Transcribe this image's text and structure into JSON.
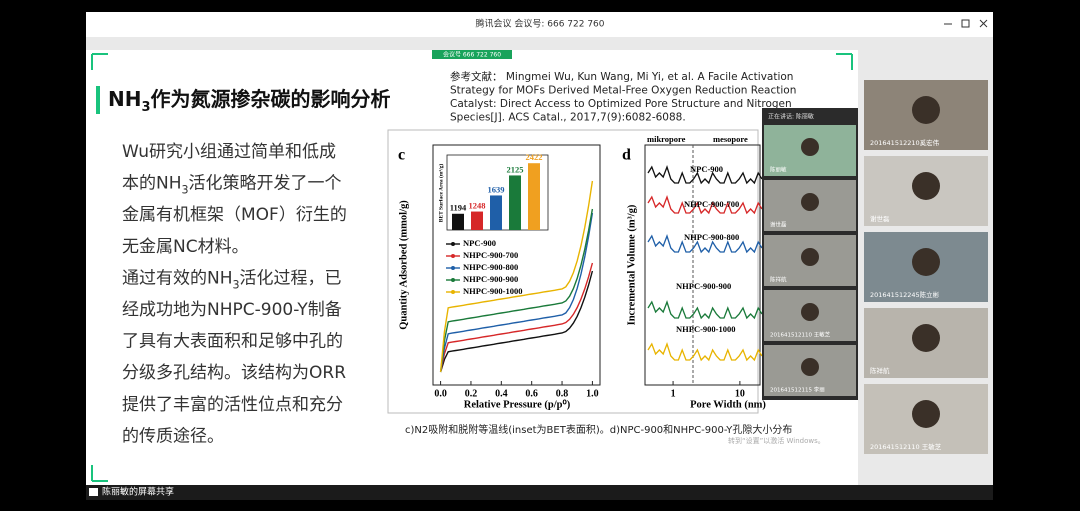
{
  "window": {
    "title": "腾讯会议 会议号: 666 722 760"
  },
  "slide": {
    "badge": "会议号 666 722 760",
    "title": [
      {
        "text": "NH"
      },
      {
        "text": "3",
        "sub": true
      },
      {
        "text": "作为氮源掺杂碳的影响分析"
      }
    ],
    "reference": [
      "参考文献： Mingmei Wu, Kun Wang, Mi Yi, et al. A Facile Activation",
      "Strategy for MOFs Derived Metal-Free Oxygen Reduction Reaction",
      "Catalyst: Direct Access to Optimized Pore Structure and Nitrogen",
      "Species[J]. ACS Catal., 2017,7(9):6082-6088."
    ],
    "body": [
      [
        {
          "text": "Wu研究小组通过简单和低成"
        }
      ],
      [
        {
          "text": "本的NH"
        },
        {
          "text": "3",
          "sub": true
        },
        {
          "text": "活化策略开发了一个"
        }
      ],
      [
        {
          "text": "金属有机框架（MOF）衍生的"
        }
      ],
      [
        {
          "text": "无金属NC材料。"
        }
      ],
      [
        {
          "text": "通过有效的NH"
        },
        {
          "text": "3",
          "sub": true
        },
        {
          "text": "活化过程，已"
        }
      ],
      [
        {
          "text": "经成功地为NHPC-900-Y制备"
        }
      ],
      [
        {
          "text": "了具有大表面积和足够中孔的"
        }
      ],
      [
        {
          "text": "分级多孔结构。该结构为ORR"
        }
      ],
      [
        {
          "text": "提供了丰富的活性位点和充分"
        }
      ],
      [
        {
          "text": "的传质途径。"
        }
      ]
    ],
    "figure": {
      "panel_c": {
        "label": "c",
        "ylabel": "Quantity Adsorbed (mmol/g)",
        "xlabel": "Relative Pressure (p/p⁰)",
        "xlim": [
          -0.05,
          1.05
        ],
        "xticks": [
          {
            "value": 0,
            "label": "0.0"
          },
          {
            "value": 0.2,
            "label": "0.2"
          },
          {
            "value": 0.4,
            "label": "0.4"
          },
          {
            "value": 0.6,
            "label": "0.6"
          },
          {
            "value": 0.8,
            "label": "0.8"
          },
          {
            "value": 1,
            "label": "1.0"
          }
        ],
        "series": [
          {
            "name": "NPC-900",
            "color": "#111111"
          },
          {
            "name": "NHPC-900-700",
            "color": "#d62728"
          },
          {
            "name": "NHPC-900-800",
            "color": "#1f5fa8"
          },
          {
            "name": "NHPC-900-900",
            "color": "#1a7a3a"
          },
          {
            "name": "NHPC-900-1000",
            "color": "#e8b400"
          }
        ],
        "inset": {
          "type": "bar",
          "ylabel": "BET Surface Area (m²/g)",
          "ylim": [
            800,
            2500
          ],
          "values": [
            1194,
            1248,
            1639,
            2125,
            2422
          ],
          "colors": [
            "#111111",
            "#d62728",
            "#1f5fa8",
            "#1a7a3a",
            "#f0a020"
          ]
        }
      },
      "panel_d": {
        "label": "d",
        "ylabel": "Incremental Volume (m³/g)",
        "xlabel": "Pore Width (nm)",
        "regions": [
          "mikropore",
          "mesopore"
        ],
        "log_x": true,
        "xlim": [
          0.38,
          20
        ],
        "xticks": [
          1,
          10
        ],
        "series": [
          {
            "name": "NPC-900",
            "color": "#111111"
          },
          {
            "name": "NHPC-900-700",
            "color": "#d62728"
          },
          {
            "name": "NHPC-900-800",
            "color": "#1f5fa8"
          },
          {
            "name": "NHPC-900-900",
            "color": "#1a7a3a"
          },
          {
            "name": "NHPC-900-1000",
            "color": "#e8b400"
          }
        ]
      }
    },
    "caption": "c)N2吸附和脱附等温线(inset为BET表面积)。d)NPC-900和NHPC-900-Y孔隙大小分布",
    "watermark": "转到“设置”以激活 Windows。"
  },
  "meeting_panel": {
    "speaking": "正在讲话: 陈丽敏",
    "tiles": [
      "陈丽敏",
      "谢世磊",
      "陈祥航",
      "201641512110 王敏芝",
      "201641512115 李丽"
    ]
  },
  "participants": [
    "201641512210奚宏伟",
    "谢世磊",
    "201641512245陈立彬",
    "陈祥航",
    "201641512110 王敏芝"
  ],
  "share_label": "陈丽敏的屏幕共享"
}
